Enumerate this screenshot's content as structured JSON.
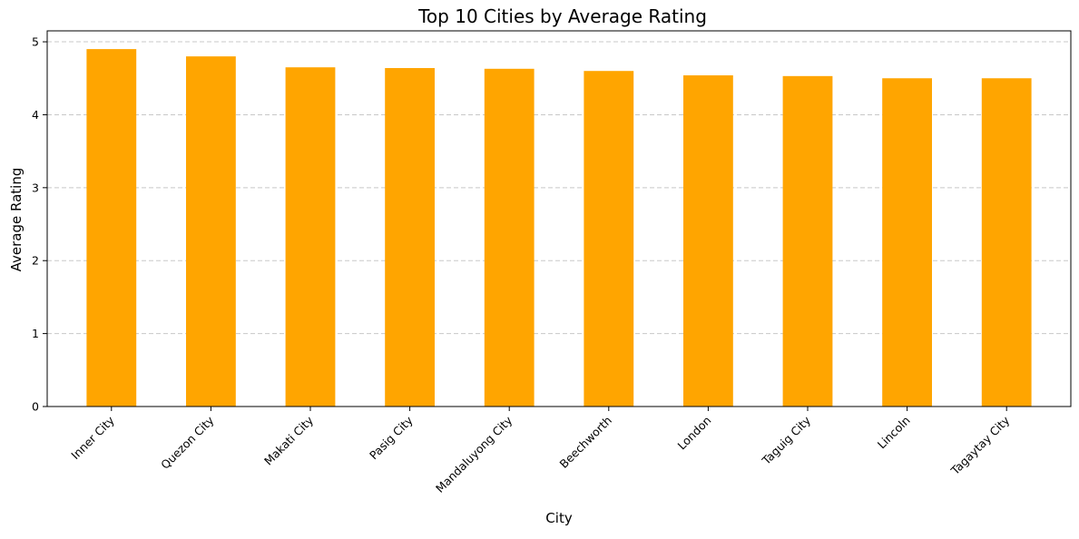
{
  "chart_data": {
    "type": "bar",
    "title": "Top 10 Cities by Average Rating",
    "xlabel": "City",
    "ylabel": "Average Rating",
    "categories": [
      "Inner City",
      "Quezon City",
      "Makati City",
      "Pasig City",
      "Mandaluyong City",
      "Beechworth",
      "London",
      "Taguig City",
      "Lincoln",
      "Tagaytay City"
    ],
    "values": [
      4.9,
      4.8,
      4.65,
      4.64,
      4.63,
      4.6,
      4.54,
      4.53,
      4.5,
      4.5
    ],
    "ylim": [
      0,
      5.15
    ],
    "yticks": [
      0,
      1,
      2,
      3,
      4,
      5
    ],
    "bar_color": "#ffa500",
    "grid": {
      "axis": "y",
      "style": "dashed",
      "color": "#c8c8c8"
    },
    "legend": "none"
  }
}
